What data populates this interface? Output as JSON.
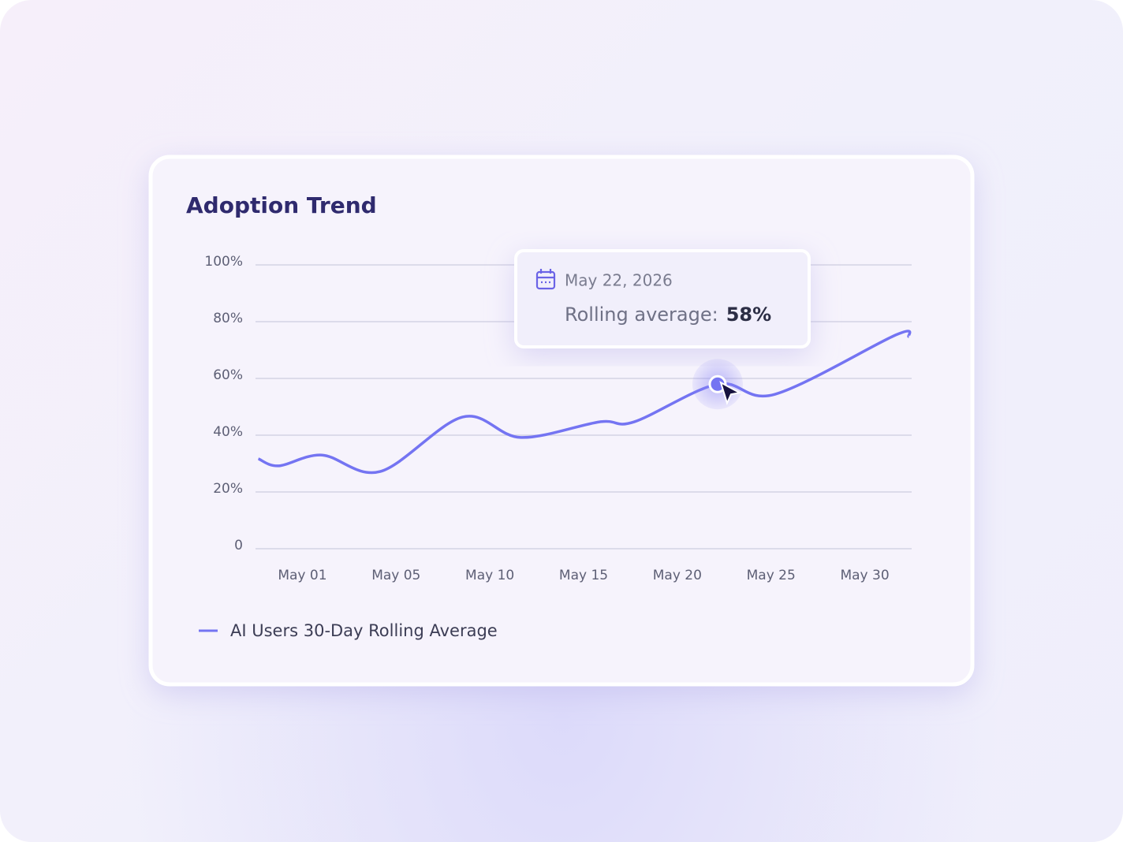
{
  "chart_data": {
    "type": "line",
    "title": "Adoption Trend",
    "x": [
      -0.47,
      -0.25,
      0.21,
      0.83,
      1.71,
      2.33,
      3.17,
      3.54,
      4.43,
      5.04,
      6.33,
      6.47
    ],
    "xlim": [
      -0.5,
      6.5
    ],
    "xticks": [
      {
        "value": 0,
        "label": "May 01"
      },
      {
        "value": 1,
        "label": "May 05"
      },
      {
        "value": 2,
        "label": "May 10"
      },
      {
        "value": 3,
        "label": "May 15"
      },
      {
        "value": 4,
        "label": "May 20"
      },
      {
        "value": 5,
        "label": "May 25"
      },
      {
        "value": 6,
        "label": "May 30"
      }
    ],
    "ylim": [
      0,
      100
    ],
    "yticks": [
      0,
      {
        "value": 20,
        "label": "20%"
      },
      {
        "value": 40,
        "label": "40%"
      },
      {
        "value": 60,
        "label": "60%"
      },
      {
        "value": 80,
        "label": "80%"
      },
      {
        "value": 100,
        "label": "100%"
      }
    ],
    "grid": true,
    "series": [
      {
        "name": "AI Users 30-Day Rolling Average",
        "color": "#7474f2",
        "values": [
          31.7,
          29.2,
          33,
          27.2,
          46.4,
          39.2,
          44.7,
          44.7,
          58,
          54.4,
          75.3,
          74.7
        ]
      }
    ],
    "tooltip": {
      "index": 8,
      "date": "May 22, 2026",
      "label": "Rolling average:",
      "value_label": "58%"
    }
  }
}
